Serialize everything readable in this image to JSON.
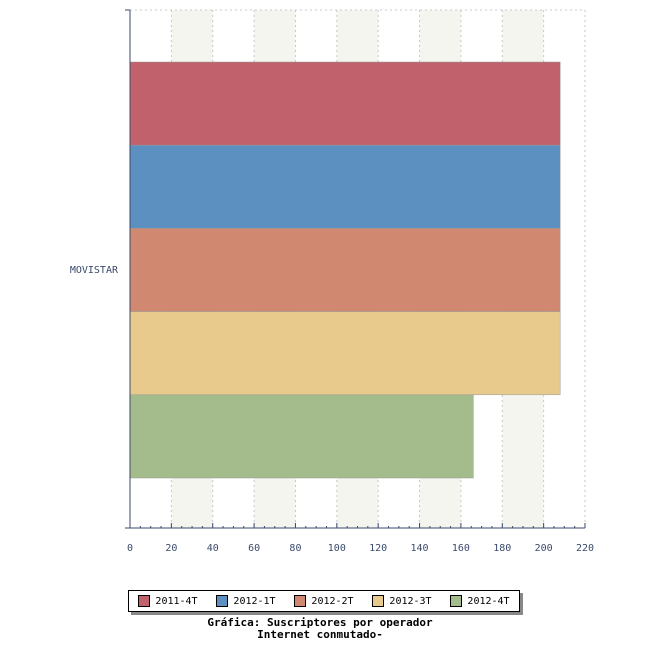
{
  "chart_data": {
    "type": "bar",
    "orientation": "horizontal",
    "categories": [
      "MOVISTAR"
    ],
    "series": [
      {
        "name": "2011-4T",
        "values": [
          208
        ],
        "color": "#c0616b"
      },
      {
        "name": "2012-1T",
        "values": [
          208
        ],
        "color": "#5b90c0"
      },
      {
        "name": "2012-2T",
        "values": [
          208
        ],
        "color": "#d08870"
      },
      {
        "name": "2012-3T",
        "values": [
          208
        ],
        "color": "#e9ca8d"
      },
      {
        "name": "2012-4T",
        "values": [
          166
        ],
        "color": "#a4bc8b"
      }
    ],
    "xlim": [
      0,
      220
    ],
    "xticks": [
      0,
      20,
      40,
      60,
      80,
      100,
      120,
      140,
      160,
      180,
      200,
      220
    ],
    "grid": true,
    "legend_position": "bottom",
    "title": "Gráfica: Suscriptores por operador",
    "subtitle": "Internet conmutado-"
  }
}
